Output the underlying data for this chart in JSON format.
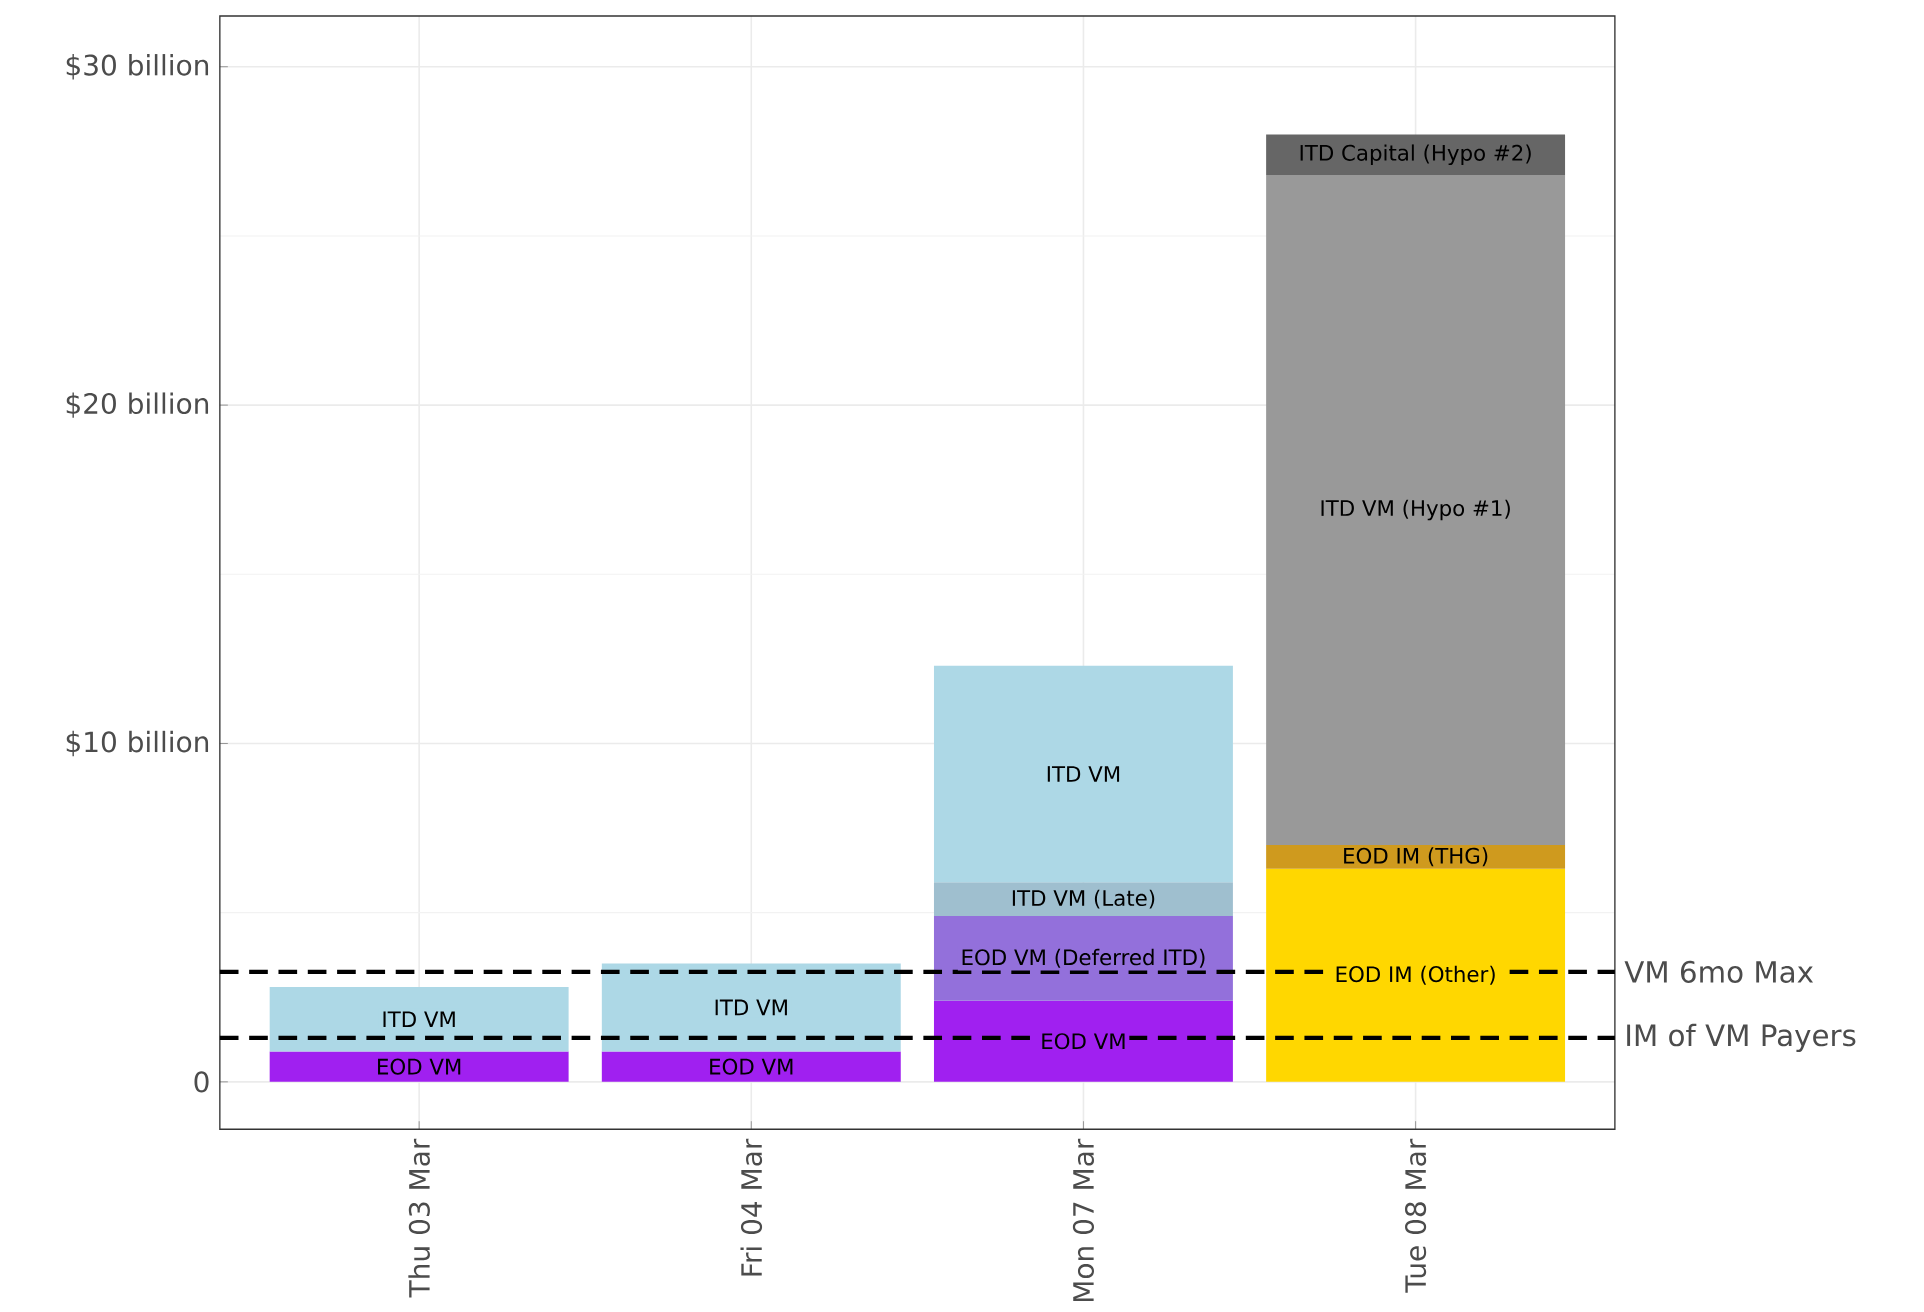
{
  "chart_data": {
    "type": "bar",
    "stacked": true,
    "categories": [
      "Thu 03 Mar",
      "Fri 04 Mar",
      "Mon 07 Mar",
      "Tue 08 Mar"
    ],
    "series": [
      {
        "name": "EOD VM",
        "color": "#a020f0",
        "values": [
          0.9,
          0.9,
          2.4,
          null
        ]
      },
      {
        "name": "EOD VM (Deferred ITD)",
        "color": "#9370db",
        "values": [
          null,
          null,
          2.5,
          null
        ]
      },
      {
        "name": "ITD VM (Late)",
        "color": "#9fbfcf",
        "values": [
          null,
          null,
          1.0,
          null
        ]
      },
      {
        "name": "ITD VM",
        "color": "#add8e6",
        "values": [
          1.9,
          2.6,
          6.4,
          null
        ]
      },
      {
        "name": "EOD IM (Other)",
        "color": "#ffd700",
        "values": [
          null,
          null,
          null,
          6.3
        ]
      },
      {
        "name": "EOD IM (THG)",
        "color": "#cf9a1e",
        "values": [
          null,
          null,
          null,
          0.7
        ]
      },
      {
        "name": "ITD VM (Hypo #1)",
        "color": "#999999",
        "values": [
          null,
          null,
          null,
          19.8
        ]
      },
      {
        "name": "ITD Capital (Hypo #2)",
        "color": "#666666",
        "values": [
          null,
          null,
          null,
          1.2
        ]
      }
    ],
    "ylim": [
      -1.4,
      31.5
    ],
    "yticks": [
      0,
      {
        "value": 10,
        "label": "$10 billion"
      },
      {
        "value": 20,
        "label": "$20 billion"
      },
      {
        "value": 30,
        "label": "$30 billion"
      }
    ],
    "grid": true,
    "ref_lines": [
      {
        "axis": "y",
        "value": 3.25,
        "label": "VM 6mo Max",
        "color": "#000000",
        "line_style": "dashed"
      },
      {
        "axis": "y",
        "value": 1.3,
        "label": "IM of VM Payers",
        "color": "#000000",
        "line_style": "dashed"
      }
    ]
  }
}
